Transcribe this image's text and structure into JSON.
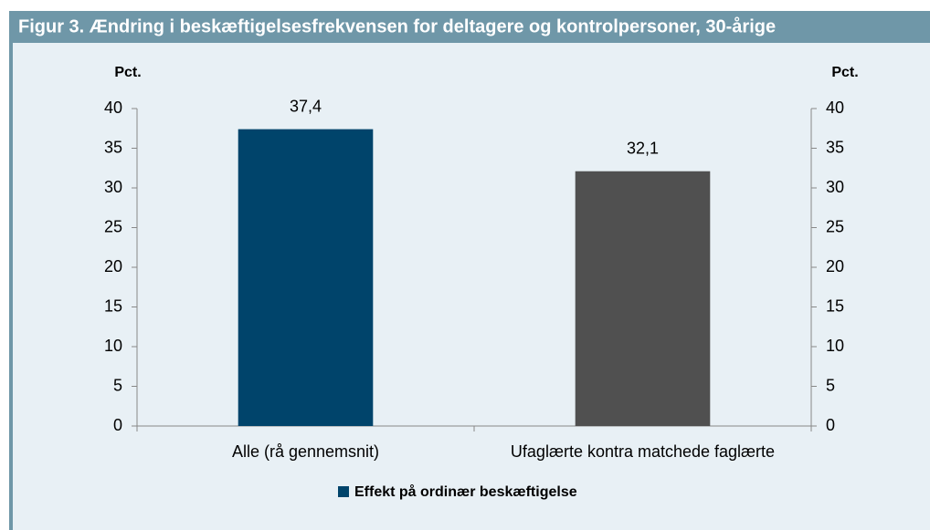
{
  "chart_data": {
    "type": "bar",
    "title": "Figur 3. Ændring i beskæftigelsesfrekvensen for deltagere og kontrolpersoner, 30-årige",
    "ylabel": "Pct.",
    "y2label": "Pct.",
    "categories": [
      "Alle (rå gennemsnit)",
      "Ufaglærte kontra matchede faglærte"
    ],
    "series": [
      {
        "name": "Effekt på ordinær beskæftigelse",
        "color": "#00446b",
        "bar_colors": [
          "#00446b",
          "#505050"
        ],
        "values": [
          37.4,
          32.1
        ],
        "value_labels": [
          "37,4",
          "32,1"
        ]
      }
    ],
    "ylim": [
      0,
      40
    ],
    "yticks": [
      0,
      5,
      10,
      15,
      20,
      25,
      30,
      35,
      40
    ],
    "y2lim": [
      0,
      40
    ],
    "y2ticks": [
      0,
      5,
      10,
      15,
      20,
      25,
      30,
      35,
      40
    ],
    "grid": false,
    "legend": "bottom"
  }
}
